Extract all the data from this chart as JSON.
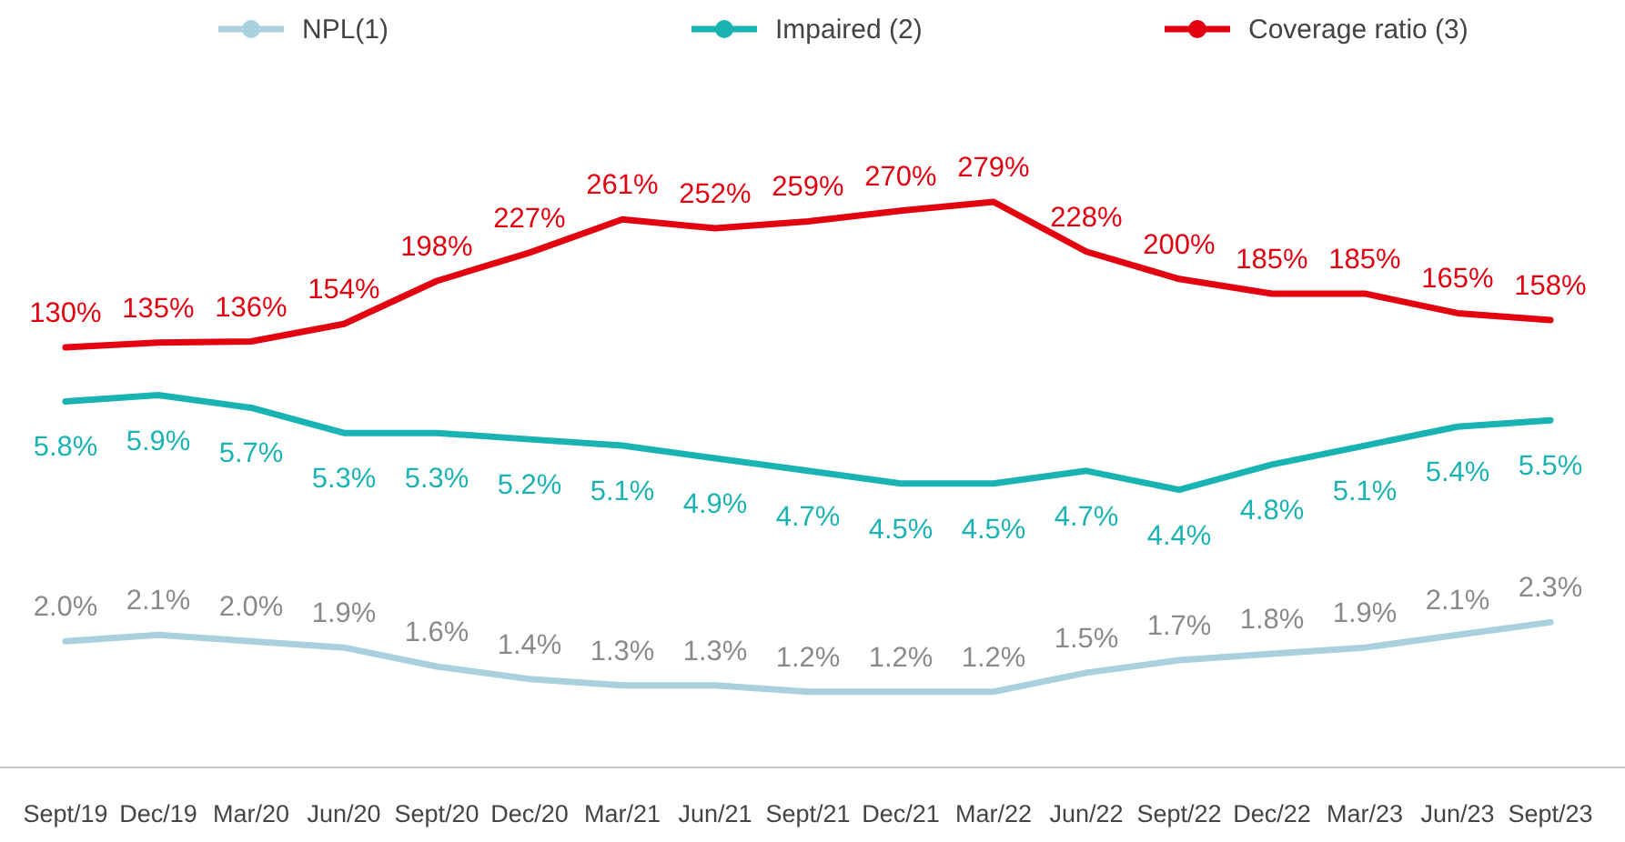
{
  "chart_data": [
    {
      "type": "line",
      "categories": [
        "Sept/19",
        "Dec/19",
        "Mar/20",
        "Jun/20",
        "Sept/20",
        "Dec/20",
        "Mar/21",
        "Jun/21",
        "Sept/21",
        "Dec/21",
        "Mar/22",
        "Jun/22",
        "Sept/22",
        "Dec/22",
        "Mar/23",
        "Jun/23",
        "Sept/23"
      ],
      "series": [
        {
          "name": "NPL(1)",
          "color": "#a9d0dd",
          "values": [
            2.0,
            2.1,
            2.0,
            1.9,
            1.6,
            1.4,
            1.3,
            1.3,
            1.2,
            1.2,
            1.2,
            1.5,
            1.7,
            1.8,
            1.9,
            2.1,
            2.3
          ],
          "value_labels": [
            "2.0%",
            "2.1%",
            "2.0%",
            "1.9%",
            "1.6%",
            "1.4%",
            "1.3%",
            "1.3%",
            "1.2%",
            "1.2%",
            "1.2%",
            "1.5%",
            "1.7%",
            "1.8%",
            "1.9%",
            "2.1%",
            "2.3%"
          ]
        },
        {
          "name": "Impaired (2)",
          "color": "#1ab3b3",
          "values": [
            5.8,
            5.9,
            5.7,
            5.3,
            5.3,
            5.2,
            5.1,
            4.9,
            4.7,
            4.5,
            4.5,
            4.7,
            4.4,
            4.8,
            5.1,
            5.4,
            5.5
          ],
          "value_labels": [
            "5.8%",
            "5.9%",
            "5.7%",
            "5.3%",
            "5.3%",
            "5.2%",
            "5.1%",
            "4.9%",
            "4.7%",
            "4.5%",
            "4.5%",
            "4.7%",
            "4.4%",
            "4.8%",
            "5.1%",
            "5.4%",
            "5.5%"
          ]
        }
      ],
      "legend": "top"
    },
    {
      "type": "line",
      "categories": [
        null,
        null,
        null,
        null,
        null,
        null,
        null,
        null,
        null,
        null,
        null,
        null,
        null,
        null,
        null,
        null,
        null
      ],
      "series": [
        {
          "name": "Coverage ratio (3)",
          "color": "#e3000f",
          "values": [
            130,
            135,
            136,
            154,
            198,
            227,
            261,
            252,
            259,
            270,
            279,
            228,
            200,
            185,
            185,
            165,
            158
          ],
          "value_labels": [
            "130%",
            "135%",
            "136%",
            "154%",
            "198%",
            "227%",
            "261%",
            "252%",
            "259%",
            "270%",
            "279%",
            "228%",
            "200%",
            "185%",
            "185%",
            "165%",
            "158%"
          ]
        }
      ],
      "legend": "top"
    }
  ]
}
